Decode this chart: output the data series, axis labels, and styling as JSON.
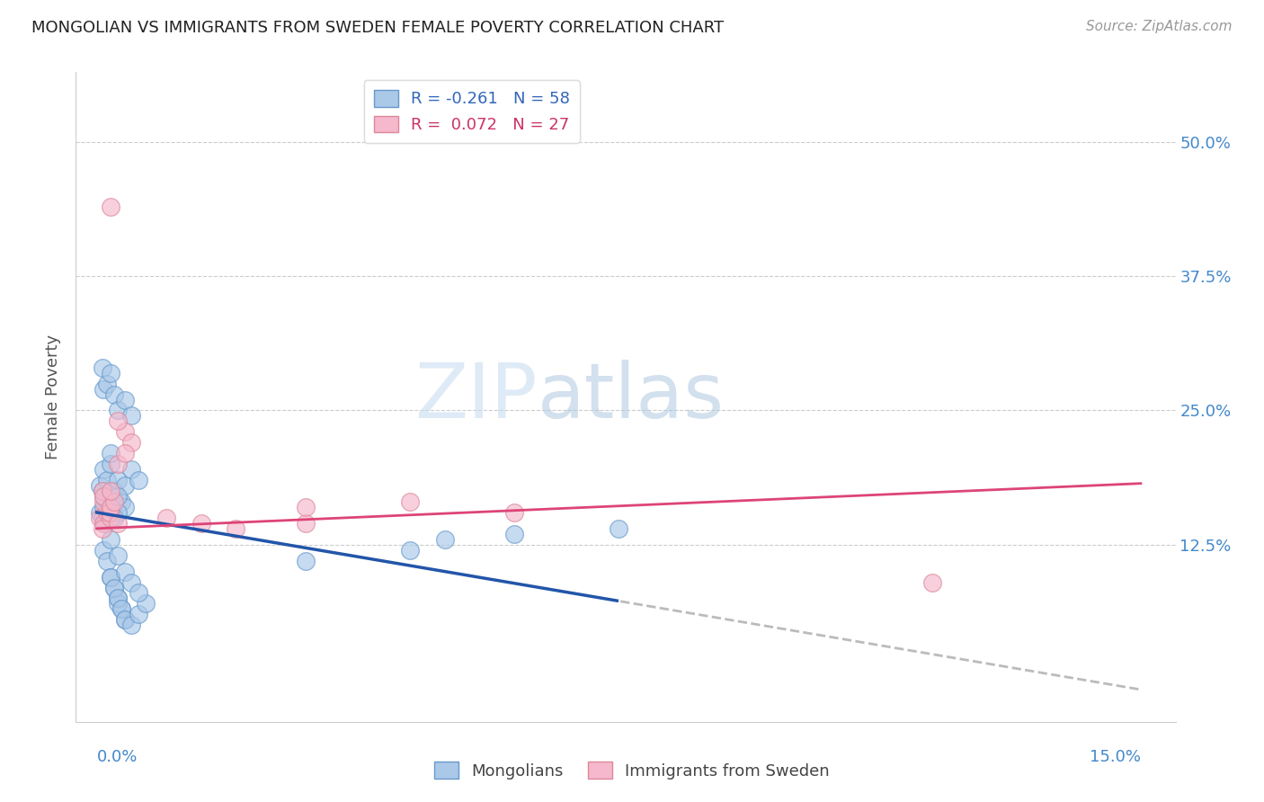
{
  "title": "MONGOLIAN VS IMMIGRANTS FROM SWEDEN FEMALE POVERTY CORRELATION CHART",
  "source": "Source: ZipAtlas.com",
  "ylabel": "Female Poverty",
  "ytick_labels": [
    "12.5%",
    "25.0%",
    "37.5%",
    "50.0%"
  ],
  "ytick_values": [
    0.125,
    0.25,
    0.375,
    0.5
  ],
  "xtick_left_label": "0.0%",
  "xtick_right_label": "15.0%",
  "legend_r1": "R = -0.261   N = 58",
  "legend_r2": "R =  0.072   N = 27",
  "legend_l1": "Mongolians",
  "legend_l2": "Immigrants from Sweden",
  "watermark": "ZIPatlas",
  "blue_face": "#aac8e8",
  "blue_edge": "#6699cc",
  "pink_face": "#f5b8cc",
  "pink_edge": "#dd8899",
  "trend_blue_color": "#2255aa",
  "trend_pink_color": "#dd4477",
  "trend_dash_color": "#bbbbbb",
  "legend_r1_color": "#3366bb",
  "legend_r2_color": "#cc3366",
  "right_tick_color": "#4488cc",
  "blue_text_color": "#4488cc",
  "body_text_color": "#444444",
  "dpi": 100,
  "figw": 14.06,
  "figh": 8.92,
  "mongolians_x": [
    0.0005,
    0.001,
    0.0008,
    0.0012,
    0.0015,
    0.002,
    0.001,
    0.0018,
    0.0005,
    0.0008,
    0.001,
    0.0015,
    0.002,
    0.0025,
    0.003,
    0.002,
    0.0035,
    0.004,
    0.003,
    0.0025,
    0.005,
    0.004,
    0.003,
    0.006,
    0.0008,
    0.001,
    0.0015,
    0.002,
    0.0025,
    0.003,
    0.004,
    0.005,
    0.001,
    0.0015,
    0.002,
    0.0025,
    0.003,
    0.0035,
    0.004,
    0.003,
    0.002,
    0.0025,
    0.003,
    0.0035,
    0.004,
    0.005,
    0.006,
    0.007,
    0.002,
    0.003,
    0.004,
    0.005,
    0.006,
    0.06,
    0.075,
    0.05,
    0.045,
    0.03
  ],
  "mongolians_y": [
    0.155,
    0.16,
    0.15,
    0.145,
    0.165,
    0.155,
    0.17,
    0.16,
    0.18,
    0.175,
    0.195,
    0.185,
    0.2,
    0.175,
    0.185,
    0.21,
    0.165,
    0.16,
    0.155,
    0.15,
    0.195,
    0.18,
    0.17,
    0.185,
    0.29,
    0.27,
    0.275,
    0.285,
    0.265,
    0.25,
    0.26,
    0.245,
    0.12,
    0.11,
    0.095,
    0.085,
    0.075,
    0.065,
    0.055,
    0.07,
    0.095,
    0.085,
    0.075,
    0.065,
    0.055,
    0.05,
    0.06,
    0.07,
    0.13,
    0.115,
    0.1,
    0.09,
    0.08,
    0.135,
    0.14,
    0.13,
    0.12,
    0.11
  ],
  "sweden_x": [
    0.0005,
    0.001,
    0.0008,
    0.0015,
    0.002,
    0.001,
    0.0018,
    0.0008,
    0.001,
    0.002,
    0.0025,
    0.003,
    0.002,
    0.003,
    0.004,
    0.003,
    0.005,
    0.004,
    0.02,
    0.03,
    0.045,
    0.06,
    0.01,
    0.015,
    0.002,
    0.03,
    0.12
  ],
  "sweden_y": [
    0.15,
    0.145,
    0.14,
    0.155,
    0.15,
    0.165,
    0.155,
    0.175,
    0.17,
    0.16,
    0.165,
    0.145,
    0.175,
    0.2,
    0.23,
    0.24,
    0.22,
    0.21,
    0.14,
    0.145,
    0.165,
    0.155,
    0.15,
    0.145,
    0.44,
    0.16,
    0.09
  ]
}
